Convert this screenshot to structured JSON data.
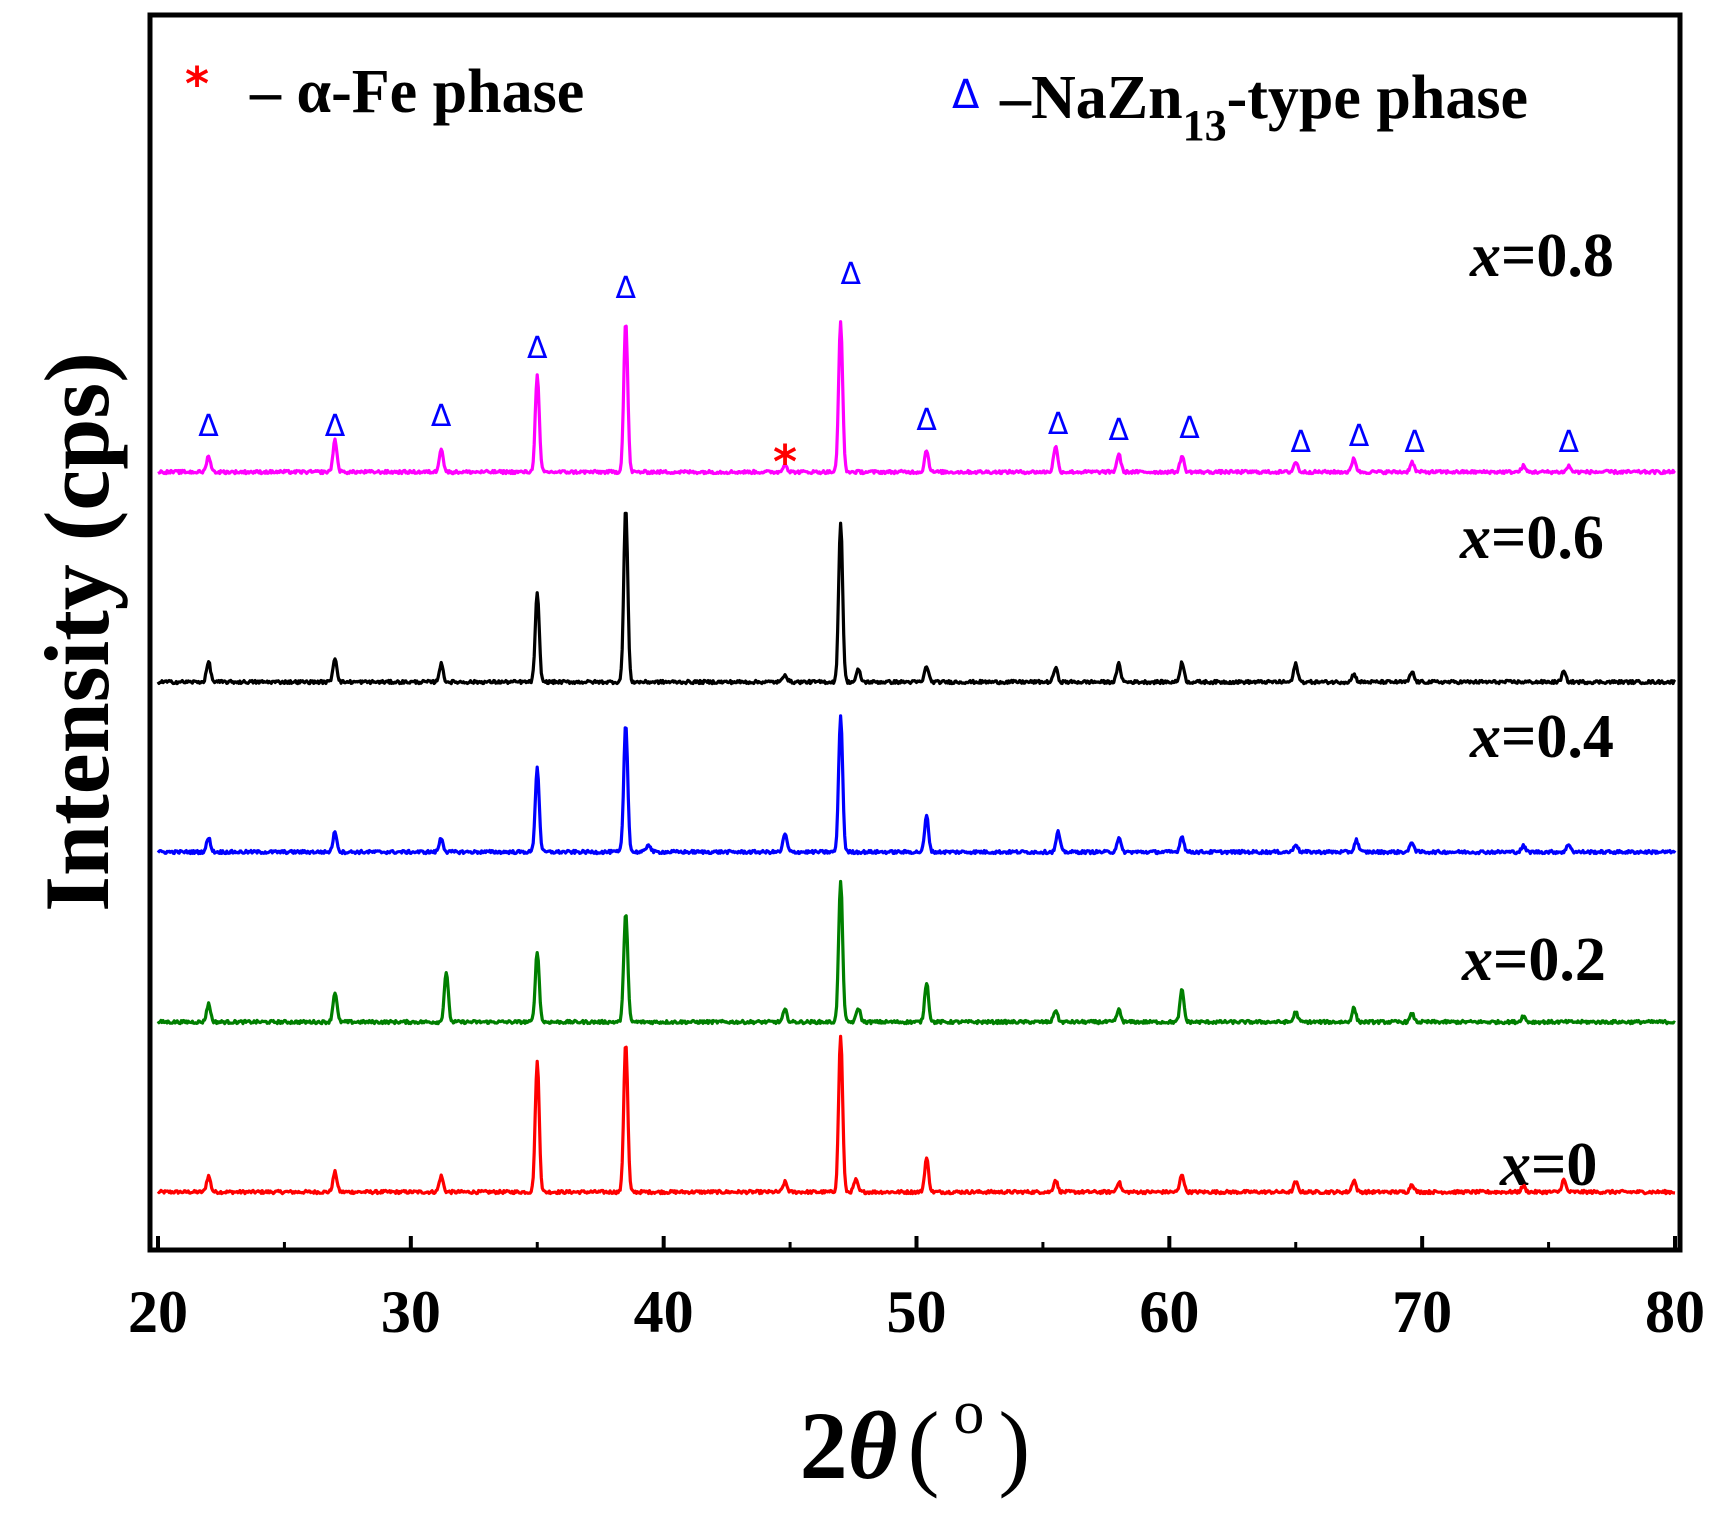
{
  "chart_data": {
    "type": "line",
    "title": "",
    "xlabel_prefix": "2",
    "xlabel_symbol": "θ",
    "xlabel_open": "(",
    "xlabel_unit": "o",
    "xlabel_close": ")",
    "ylabel": "Intensity (cps)",
    "xlim": [
      20,
      80
    ],
    "xticks": [
      20,
      30,
      40,
      50,
      60,
      70,
      80
    ],
    "grid": false,
    "legend": {
      "position": "top",
      "entries": [
        {
          "symbol": "*",
          "color": "#ff0000",
          "text": "– α-Fe phase"
        },
        {
          "symbol": "Δ",
          "color": "#0000ff",
          "text_prefix": "–NaZn",
          "text_sub": "13",
          "text_suffix": "-type phase"
        }
      ]
    },
    "series": [
      {
        "name_var": "x",
        "name_value": "=0",
        "color": "#ff0000",
        "baseline": 20,
        "peaks": [
          [
            22.0,
            8
          ],
          [
            27.0,
            10
          ],
          [
            31.2,
            8
          ],
          [
            35.0,
            65
          ],
          [
            38.5,
            75
          ],
          [
            44.8,
            5
          ],
          [
            47.0,
            78
          ],
          [
            47.6,
            6
          ],
          [
            50.4,
            17
          ],
          [
            55.5,
            6
          ],
          [
            58.0,
            5
          ],
          [
            60.5,
            9
          ],
          [
            65.0,
            5
          ],
          [
            67.3,
            6
          ],
          [
            69.6,
            4
          ],
          [
            74.0,
            3
          ],
          [
            75.6,
            6
          ]
        ]
      },
      {
        "name_var": "x",
        "name_value": "=0.2",
        "color": "#007f00",
        "baseline": 105,
        "peaks": [
          [
            22.0,
            9
          ],
          [
            27.0,
            15
          ],
          [
            31.4,
            25
          ],
          [
            35.0,
            35
          ],
          [
            38.5,
            55
          ],
          [
            44.8,
            6
          ],
          [
            47.0,
            70
          ],
          [
            47.7,
            7
          ],
          [
            50.4,
            20
          ],
          [
            55.5,
            6
          ],
          [
            58.0,
            6
          ],
          [
            60.5,
            16
          ],
          [
            65.0,
            5
          ],
          [
            67.3,
            7
          ],
          [
            69.6,
            4
          ],
          [
            74.0,
            3
          ]
        ]
      },
      {
        "name_var": "x",
        "name_value": "=0.4",
        "color": "#0000ff",
        "baseline": 190,
        "peaks": [
          [
            22.0,
            7
          ],
          [
            27.0,
            10
          ],
          [
            31.2,
            7
          ],
          [
            35.0,
            42
          ],
          [
            38.5,
            64
          ],
          [
            39.4,
            4
          ],
          [
            44.8,
            9
          ],
          [
            47.0,
            68
          ],
          [
            50.4,
            18
          ],
          [
            55.6,
            10
          ],
          [
            58.0,
            7
          ],
          [
            60.5,
            8
          ],
          [
            65.0,
            4
          ],
          [
            67.4,
            6
          ],
          [
            69.6,
            5
          ],
          [
            74.0,
            3
          ],
          [
            75.8,
            4
          ]
        ]
      },
      {
        "name_var": "x",
        "name_value": "=0.6",
        "color": "#000000",
        "baseline": 275,
        "peaks": [
          [
            22.0,
            10
          ],
          [
            27.0,
            12
          ],
          [
            31.2,
            9
          ],
          [
            35.0,
            44
          ],
          [
            38.5,
            87
          ],
          [
            44.8,
            4
          ],
          [
            47.0,
            80
          ],
          [
            47.7,
            6
          ],
          [
            50.4,
            8
          ],
          [
            55.5,
            7
          ],
          [
            58.0,
            9
          ],
          [
            60.5,
            10
          ],
          [
            65.0,
            9
          ],
          [
            67.3,
            4
          ],
          [
            69.6,
            5
          ],
          [
            75.6,
            5
          ]
        ]
      },
      {
        "name_var": "x",
        "name_value": "=0.8",
        "color": "#ff00ff",
        "baseline": 380,
        "peaks": [
          [
            22.0,
            8
          ],
          [
            27.0,
            16
          ],
          [
            31.2,
            12
          ],
          [
            35.0,
            48
          ],
          [
            38.5,
            75
          ],
          [
            44.8,
            4
          ],
          [
            47.0,
            75
          ],
          [
            50.4,
            11
          ],
          [
            55.5,
            13
          ],
          [
            58.0,
            9
          ],
          [
            60.5,
            8
          ],
          [
            65.0,
            5
          ],
          [
            67.3,
            7
          ],
          [
            69.6,
            5
          ],
          [
            74.0,
            3
          ],
          [
            75.8,
            3
          ]
        ]
      }
    ],
    "markers": [
      {
        "symbol": "Δ",
        "color": "#0000ff",
        "x": 22.0,
        "level": 398
      },
      {
        "symbol": "Δ",
        "color": "#0000ff",
        "x": 27.0,
        "level": 398
      },
      {
        "symbol": "Δ",
        "color": "#0000ff",
        "x": 31.2,
        "level": 403
      },
      {
        "symbol": "Δ",
        "color": "#0000ff",
        "x": 35.0,
        "level": 437
      },
      {
        "symbol": "Δ",
        "color": "#0000ff",
        "x": 38.5,
        "level": 467
      },
      {
        "symbol": "*",
        "color": "#ff0000",
        "x": 44.8,
        "level": 391
      },
      {
        "symbol": "Δ",
        "color": "#0000ff",
        "x": 47.4,
        "level": 474
      },
      {
        "symbol": "Δ",
        "color": "#0000ff",
        "x": 50.4,
        "level": 401
      },
      {
        "symbol": "Δ",
        "color": "#0000ff",
        "x": 55.6,
        "level": 399
      },
      {
        "symbol": "Δ",
        "color": "#0000ff",
        "x": 58.0,
        "level": 396
      },
      {
        "symbol": "Δ",
        "color": "#0000ff",
        "x": 60.8,
        "level": 397
      },
      {
        "symbol": "Δ",
        "color": "#0000ff",
        "x": 65.2,
        "level": 390
      },
      {
        "symbol": "Δ",
        "color": "#0000ff",
        "x": 67.5,
        "level": 393
      },
      {
        "symbol": "Δ",
        "color": "#0000ff",
        "x": 69.7,
        "level": 390
      },
      {
        "symbol": "Δ",
        "color": "#0000ff",
        "x": 75.8,
        "level": 390
      }
    ]
  }
}
